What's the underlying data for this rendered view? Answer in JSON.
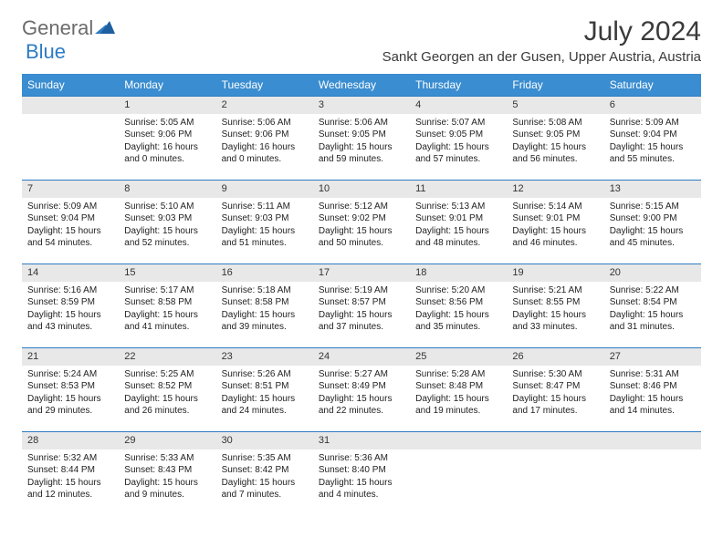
{
  "brand": {
    "part1": "General",
    "part2": "Blue"
  },
  "title": "July 2024",
  "location": "Sankt Georgen an der Gusen, Upper Austria, Austria",
  "colors": {
    "header_bg": "#3a8dd0",
    "header_text": "#ffffff",
    "row_divider": "#2d7bc4",
    "daynum_bg": "#e8e8e8",
    "body_text": "#222222",
    "title_text": "#3a3a3a",
    "logo_gray": "#6b6b6b",
    "logo_blue": "#2d7bc4"
  },
  "typography": {
    "title_fontsize": 30,
    "location_fontsize": 15,
    "dayheader_fontsize": 12,
    "daynum_fontsize": 11,
    "content_fontsize": 10
  },
  "day_headers": [
    "Sunday",
    "Monday",
    "Tuesday",
    "Wednesday",
    "Thursday",
    "Friday",
    "Saturday"
  ],
  "weeks": [
    [
      null,
      {
        "n": "1",
        "sr": "Sunrise: 5:05 AM",
        "ss": "Sunset: 9:06 PM",
        "d1": "Daylight: 16 hours",
        "d2": "and 0 minutes."
      },
      {
        "n": "2",
        "sr": "Sunrise: 5:06 AM",
        "ss": "Sunset: 9:06 PM",
        "d1": "Daylight: 16 hours",
        "d2": "and 0 minutes."
      },
      {
        "n": "3",
        "sr": "Sunrise: 5:06 AM",
        "ss": "Sunset: 9:05 PM",
        "d1": "Daylight: 15 hours",
        "d2": "and 59 minutes."
      },
      {
        "n": "4",
        "sr": "Sunrise: 5:07 AM",
        "ss": "Sunset: 9:05 PM",
        "d1": "Daylight: 15 hours",
        "d2": "and 57 minutes."
      },
      {
        "n": "5",
        "sr": "Sunrise: 5:08 AM",
        "ss": "Sunset: 9:05 PM",
        "d1": "Daylight: 15 hours",
        "d2": "and 56 minutes."
      },
      {
        "n": "6",
        "sr": "Sunrise: 5:09 AM",
        "ss": "Sunset: 9:04 PM",
        "d1": "Daylight: 15 hours",
        "d2": "and 55 minutes."
      }
    ],
    [
      {
        "n": "7",
        "sr": "Sunrise: 5:09 AM",
        "ss": "Sunset: 9:04 PM",
        "d1": "Daylight: 15 hours",
        "d2": "and 54 minutes."
      },
      {
        "n": "8",
        "sr": "Sunrise: 5:10 AM",
        "ss": "Sunset: 9:03 PM",
        "d1": "Daylight: 15 hours",
        "d2": "and 52 minutes."
      },
      {
        "n": "9",
        "sr": "Sunrise: 5:11 AM",
        "ss": "Sunset: 9:03 PM",
        "d1": "Daylight: 15 hours",
        "d2": "and 51 minutes."
      },
      {
        "n": "10",
        "sr": "Sunrise: 5:12 AM",
        "ss": "Sunset: 9:02 PM",
        "d1": "Daylight: 15 hours",
        "d2": "and 50 minutes."
      },
      {
        "n": "11",
        "sr": "Sunrise: 5:13 AM",
        "ss": "Sunset: 9:01 PM",
        "d1": "Daylight: 15 hours",
        "d2": "and 48 minutes."
      },
      {
        "n": "12",
        "sr": "Sunrise: 5:14 AM",
        "ss": "Sunset: 9:01 PM",
        "d1": "Daylight: 15 hours",
        "d2": "and 46 minutes."
      },
      {
        "n": "13",
        "sr": "Sunrise: 5:15 AM",
        "ss": "Sunset: 9:00 PM",
        "d1": "Daylight: 15 hours",
        "d2": "and 45 minutes."
      }
    ],
    [
      {
        "n": "14",
        "sr": "Sunrise: 5:16 AM",
        "ss": "Sunset: 8:59 PM",
        "d1": "Daylight: 15 hours",
        "d2": "and 43 minutes."
      },
      {
        "n": "15",
        "sr": "Sunrise: 5:17 AM",
        "ss": "Sunset: 8:58 PM",
        "d1": "Daylight: 15 hours",
        "d2": "and 41 minutes."
      },
      {
        "n": "16",
        "sr": "Sunrise: 5:18 AM",
        "ss": "Sunset: 8:58 PM",
        "d1": "Daylight: 15 hours",
        "d2": "and 39 minutes."
      },
      {
        "n": "17",
        "sr": "Sunrise: 5:19 AM",
        "ss": "Sunset: 8:57 PM",
        "d1": "Daylight: 15 hours",
        "d2": "and 37 minutes."
      },
      {
        "n": "18",
        "sr": "Sunrise: 5:20 AM",
        "ss": "Sunset: 8:56 PM",
        "d1": "Daylight: 15 hours",
        "d2": "and 35 minutes."
      },
      {
        "n": "19",
        "sr": "Sunrise: 5:21 AM",
        "ss": "Sunset: 8:55 PM",
        "d1": "Daylight: 15 hours",
        "d2": "and 33 minutes."
      },
      {
        "n": "20",
        "sr": "Sunrise: 5:22 AM",
        "ss": "Sunset: 8:54 PM",
        "d1": "Daylight: 15 hours",
        "d2": "and 31 minutes."
      }
    ],
    [
      {
        "n": "21",
        "sr": "Sunrise: 5:24 AM",
        "ss": "Sunset: 8:53 PM",
        "d1": "Daylight: 15 hours",
        "d2": "and 29 minutes."
      },
      {
        "n": "22",
        "sr": "Sunrise: 5:25 AM",
        "ss": "Sunset: 8:52 PM",
        "d1": "Daylight: 15 hours",
        "d2": "and 26 minutes."
      },
      {
        "n": "23",
        "sr": "Sunrise: 5:26 AM",
        "ss": "Sunset: 8:51 PM",
        "d1": "Daylight: 15 hours",
        "d2": "and 24 minutes."
      },
      {
        "n": "24",
        "sr": "Sunrise: 5:27 AM",
        "ss": "Sunset: 8:49 PM",
        "d1": "Daylight: 15 hours",
        "d2": "and 22 minutes."
      },
      {
        "n": "25",
        "sr": "Sunrise: 5:28 AM",
        "ss": "Sunset: 8:48 PM",
        "d1": "Daylight: 15 hours",
        "d2": "and 19 minutes."
      },
      {
        "n": "26",
        "sr": "Sunrise: 5:30 AM",
        "ss": "Sunset: 8:47 PM",
        "d1": "Daylight: 15 hours",
        "d2": "and 17 minutes."
      },
      {
        "n": "27",
        "sr": "Sunrise: 5:31 AM",
        "ss": "Sunset: 8:46 PM",
        "d1": "Daylight: 15 hours",
        "d2": "and 14 minutes."
      }
    ],
    [
      {
        "n": "28",
        "sr": "Sunrise: 5:32 AM",
        "ss": "Sunset: 8:44 PM",
        "d1": "Daylight: 15 hours",
        "d2": "and 12 minutes."
      },
      {
        "n": "29",
        "sr": "Sunrise: 5:33 AM",
        "ss": "Sunset: 8:43 PM",
        "d1": "Daylight: 15 hours",
        "d2": "and 9 minutes."
      },
      {
        "n": "30",
        "sr": "Sunrise: 5:35 AM",
        "ss": "Sunset: 8:42 PM",
        "d1": "Daylight: 15 hours",
        "d2": "and 7 minutes."
      },
      {
        "n": "31",
        "sr": "Sunrise: 5:36 AM",
        "ss": "Sunset: 8:40 PM",
        "d1": "Daylight: 15 hours",
        "d2": "and 4 minutes."
      },
      null,
      null,
      null
    ]
  ]
}
